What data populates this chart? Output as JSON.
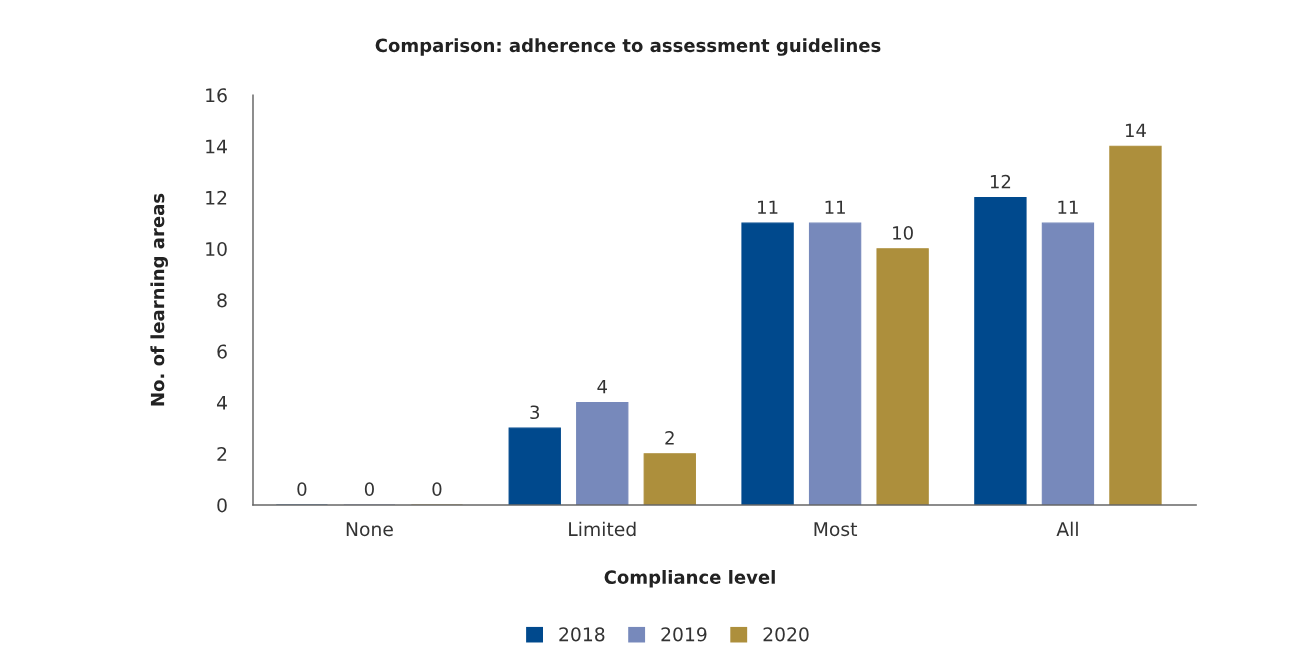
{
  "chart_data": {
    "type": "bar",
    "title": "Comparison: adherence to assessment guidelines",
    "xlabel": "Compliance level",
    "ylabel": "No. of learning areas",
    "categories": [
      "None",
      "Limited",
      "Most",
      "All"
    ],
    "series": [
      {
        "name": "2018",
        "color": "#00498d",
        "values": [
          0,
          3,
          11,
          12
        ]
      },
      {
        "name": "2019",
        "color": "#7789bb",
        "values": [
          0,
          4,
          11,
          11
        ]
      },
      {
        "name": "2020",
        "color": "#ad8f3c",
        "values": [
          0,
          2,
          10,
          14
        ]
      }
    ],
    "ylim": [
      0,
      16
    ],
    "yticks": [
      0,
      2,
      4,
      6,
      8,
      10,
      12,
      14,
      16
    ],
    "data_labels": true,
    "legend": "bottom"
  }
}
